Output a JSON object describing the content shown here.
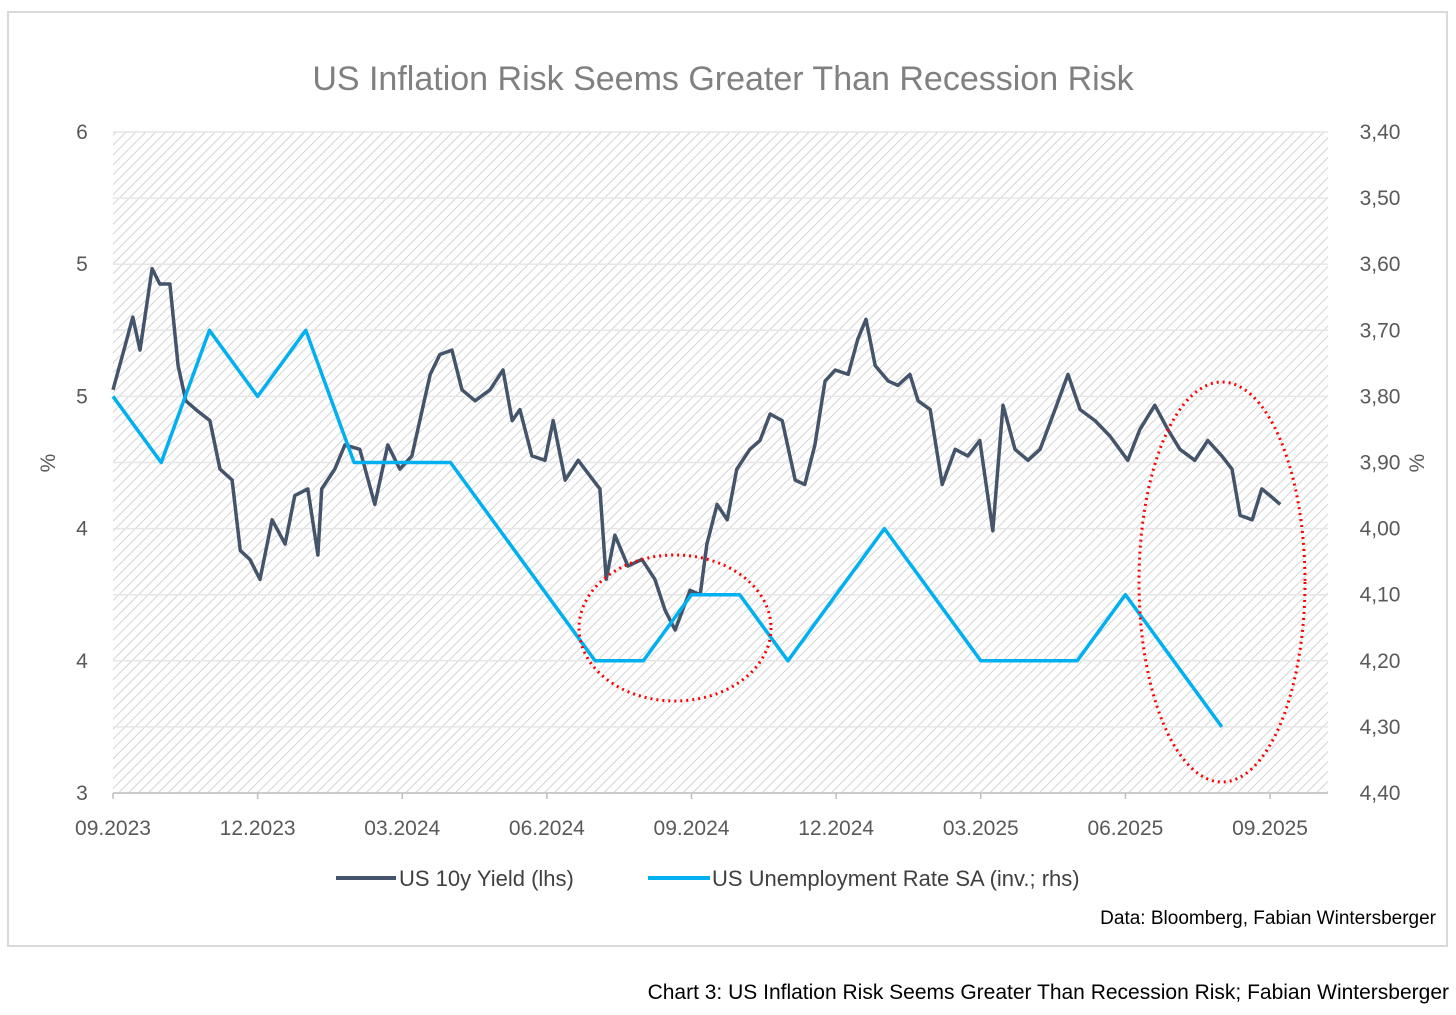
{
  "chart_data": {
    "type": "line",
    "title": "US Inflation Risk Seems Greater Than Recession Risk",
    "ylabel_left": "%",
    "ylabel_right": "%",
    "x_unit": "months since 09.2023",
    "x_ticks": [
      "09.2023",
      "12.2023",
      "03.2024",
      "06.2024",
      "09.2024",
      "12.2024",
      "03.2025",
      "06.2025",
      "09.2025"
    ],
    "x_range": [
      0,
      24.4
    ],
    "ylim_left": [
      3,
      6
    ],
    "left_ticks": [
      "6",
      "5",
      "5",
      "4",
      "4",
      "3"
    ],
    "left_tick_values": [
      6,
      5.4,
      4.8,
      4.2,
      3.6,
      3
    ],
    "ylim_right": [
      3.4,
      4.4
    ],
    "right_inverted": true,
    "right_ticks": [
      "3,40",
      "3,50",
      "3,60",
      "3,70",
      "3,80",
      "3,90",
      "4,00",
      "4,10",
      "4,20",
      "4,30",
      "4,40"
    ],
    "grid": true,
    "legend_position": "bottom",
    "series": [
      {
        "name": "US 10y Yield (lhs)",
        "axis": "left",
        "color": "#44546a",
        "x": [
          0,
          0.25,
          0.41,
          0.56,
          0.81,
          0.97,
          1.18,
          1.35,
          1.51,
          1.72,
          2.01,
          2.22,
          2.47,
          2.64,
          2.84,
          3.05,
          3.3,
          3.57,
          3.77,
          4.04,
          4.25,
          4.33,
          4.6,
          4.81,
          5.12,
          5.43,
          5.7,
          5.95,
          6.2,
          6.58,
          6.78,
          7.03,
          7.24,
          7.51,
          7.82,
          8.09,
          8.28,
          8.44,
          8.69,
          8.96,
          9.13,
          9.38,
          9.65,
          9.89,
          10.1,
          10.23,
          10.41,
          10.68,
          10.97,
          11.24,
          11.45,
          11.66,
          11.97,
          12.18,
          12.32,
          12.53,
          12.74,
          12.94,
          13.21,
          13.42,
          13.63,
          13.88,
          14.15,
          14.35,
          14.56,
          14.77,
          14.98,
          15.25,
          15.45,
          15.62,
          15.81,
          16.08,
          16.28,
          16.53,
          16.7,
          16.95,
          17.2,
          17.47,
          17.73,
          17.98,
          18.25,
          18.46,
          18.71,
          18.98,
          19.23,
          19.54,
          19.81,
          20.06,
          20.37,
          20.68,
          21.05,
          21.3,
          21.61,
          21.88,
          22.13,
          22.44,
          22.71,
          23.0,
          23.21,
          23.38,
          23.63,
          23.83,
          24.0,
          24.21
        ],
        "values": [
          4.83,
          5.03,
          5.16,
          5.01,
          5.38,
          5.31,
          5.31,
          4.94,
          4.78,
          4.74,
          4.69,
          4.47,
          4.42,
          4.1,
          4.06,
          3.97,
          4.24,
          4.13,
          4.35,
          4.38,
          4.08,
          4.38,
          4.47,
          4.58,
          4.56,
          4.31,
          4.58,
          4.47,
          4.53,
          4.9,
          4.99,
          5.01,
          4.83,
          4.78,
          4.83,
          4.92,
          4.69,
          4.74,
          4.53,
          4.51,
          4.69,
          4.42,
          4.51,
          4.44,
          4.38,
          3.97,
          4.17,
          4.03,
          4.06,
          3.97,
          3.83,
          3.74,
          3.92,
          3.9,
          4.13,
          4.31,
          4.24,
          4.47,
          4.56,
          4.6,
          4.72,
          4.69,
          4.42,
          4.4,
          4.58,
          4.87,
          4.92,
          4.9,
          5.06,
          5.15,
          4.94,
          4.87,
          4.85,
          4.9,
          4.78,
          4.74,
          4.4,
          4.56,
          4.53,
          4.6,
          4.19,
          4.76,
          4.56,
          4.51,
          4.56,
          4.74,
          4.9,
          4.74,
          4.69,
          4.62,
          4.51,
          4.65,
          4.76,
          4.65,
          4.56,
          4.51,
          4.6,
          4.53,
          4.47,
          4.26,
          4.24,
          4.38,
          4.35,
          4.31
        ]
      },
      {
        "name": "US Unemployment Rate SA (inv.; rhs)",
        "axis": "right",
        "color": "#00b0f0",
        "x": [
          0,
          1,
          2,
          3,
          4,
          5,
          6,
          7,
          8,
          9,
          10,
          11,
          12,
          13,
          14,
          15,
          16,
          17,
          18,
          19,
          20,
          21,
          22,
          23
        ],
        "values": [
          3.8,
          3.9,
          3.7,
          3.8,
          3.7,
          3.9,
          3.9,
          3.9,
          4.0,
          4.1,
          4.2,
          4.2,
          4.1,
          4.1,
          4.2,
          4.1,
          4.0,
          4.1,
          4.2,
          4.2,
          4.2,
          4.1,
          4.2,
          4.3
        ]
      }
    ],
    "annotations": [
      "red dotted ellipse around 08-10.2024",
      "red dotted ellipse around 07-09.2025"
    ],
    "source": "Data: Bloomberg, Fabian Wintersberger"
  },
  "caption": "Chart 3: US Inflation Risk Seems Greater Than Recession Risk; Fabian Wintersberger"
}
